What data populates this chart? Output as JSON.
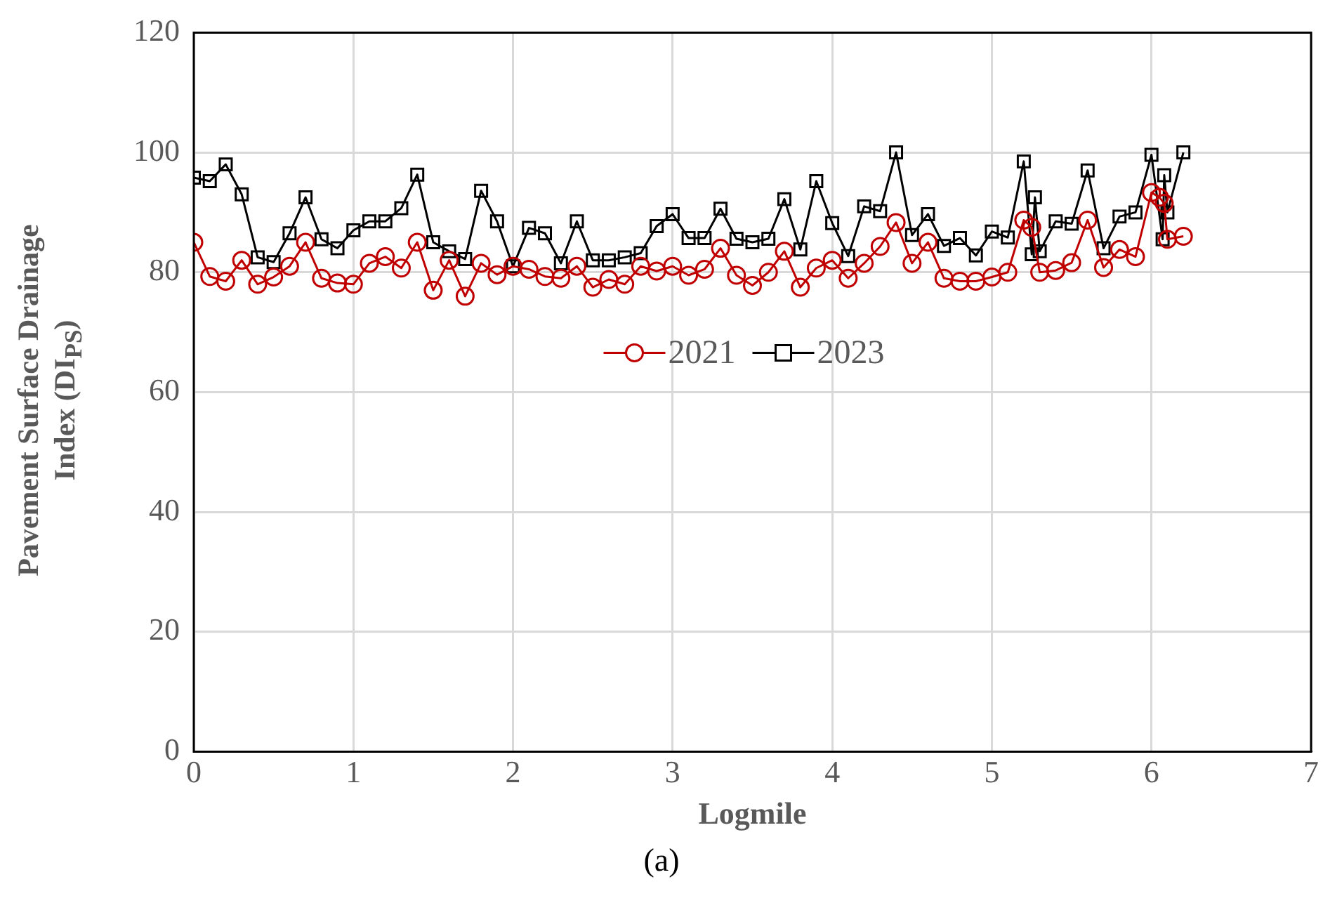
{
  "chart_data": {
    "type": "line",
    "xlabel": "Logmile",
    "ylabel": "Pavement Surface Drainage Index (DI$_{PS}$)",
    "annotations": [
      "(a)"
    ],
    "xlim": [
      0,
      7
    ],
    "xticks": [
      0,
      1,
      2,
      3,
      4,
      5,
      6,
      7
    ],
    "ylim": [
      0,
      120
    ],
    "yticks": [
      0,
      20,
      40,
      60,
      80,
      100,
      120
    ],
    "grid": true,
    "legend": "center",
    "series": [
      {
        "name": "2021",
        "color": "#c00000",
        "marker": "circle",
        "x": [
          0,
          0.1,
          0.2,
          0.3,
          0.4,
          0.5,
          0.6,
          0.7,
          0.8,
          0.9,
          1,
          1.1,
          1.2,
          1.3,
          1.4,
          1.5,
          1.6,
          1.7,
          1.8,
          1.9,
          2,
          2.1,
          2.2,
          2.3,
          2.4,
          2.5,
          2.6,
          2.7,
          2.8,
          2.9,
          3,
          3.1,
          3.2,
          3.3,
          3.4,
          3.5,
          3.6,
          3.7,
          3.8,
          3.9,
          4,
          4.1,
          4.2,
          4.3,
          4.4,
          4.5,
          4.6,
          4.7,
          4.8,
          4.9,
          5,
          5.1,
          5.2,
          5.25,
          5.3,
          5.4,
          5.5,
          5.6,
          5.7,
          5.8,
          5.9,
          6,
          6.05,
          6.08,
          6.1,
          6.2
        ],
        "values": [
          85,
          79.3,
          78.5,
          82,
          78,
          79.2,
          81,
          85,
          79,
          78.2,
          78,
          81.5,
          82.6,
          80.7,
          85,
          77,
          82,
          76,
          81.5,
          79.6,
          81,
          80.5,
          79.3,
          79,
          81,
          77.5,
          78.8,
          78,
          81,
          80.2,
          81,
          79.5,
          80.5,
          84,
          79.5,
          77.8,
          80,
          83.5,
          77.5,
          80.7,
          82,
          79,
          81.5,
          84.3,
          88.3,
          81.5,
          85,
          79,
          78.5,
          78.5,
          79.2,
          80,
          88.7,
          87.5,
          80,
          80.3,
          81.6,
          88.7,
          80.8,
          83.8,
          82.6,
          93.3,
          92.5,
          91.5,
          85.5,
          86
        ]
      },
      {
        "name": "2023",
        "color": "#000000",
        "marker": "square",
        "x": [
          0,
          0.1,
          0.2,
          0.3,
          0.4,
          0.5,
          0.6,
          0.7,
          0.8,
          0.9,
          1,
          1.1,
          1.2,
          1.3,
          1.4,
          1.5,
          1.6,
          1.7,
          1.8,
          1.9,
          2,
          2.1,
          2.2,
          2.3,
          2.4,
          2.5,
          2.6,
          2.7,
          2.8,
          2.9,
          3,
          3.1,
          3.2,
          3.3,
          3.4,
          3.5,
          3.6,
          3.7,
          3.8,
          3.9,
          4,
          4.1,
          4.2,
          4.3,
          4.4,
          4.5,
          4.6,
          4.7,
          4.8,
          4.9,
          5,
          5.1,
          5.2,
          5.25,
          5.27,
          5.3,
          5.4,
          5.5,
          5.6,
          5.7,
          5.8,
          5.9,
          6,
          6.07,
          6.08,
          6.1,
          6.2
        ],
        "values": [
          95.8,
          95.2,
          98,
          93,
          82.5,
          81.7,
          86.5,
          92.5,
          85.5,
          84,
          87,
          88.5,
          88.5,
          90.7,
          96.3,
          85,
          83.5,
          82.2,
          93.6,
          88.5,
          81,
          87.4,
          86.5,
          81.5,
          88.5,
          82,
          82,
          82.5,
          83.2,
          87.7,
          89.7,
          85.7,
          85.7,
          90.6,
          85.6,
          85,
          85.6,
          92.2,
          83.8,
          95.2,
          88.2,
          82.7,
          91,
          90.2,
          100,
          86.2,
          89.7,
          84.4,
          85.7,
          82.8,
          86.8,
          85.8,
          98.5,
          83,
          92.5,
          83.5,
          88.5,
          88.1,
          97,
          84,
          89.3,
          90,
          99.6,
          85.5,
          96.2,
          90,
          100
        ]
      }
    ]
  }
}
